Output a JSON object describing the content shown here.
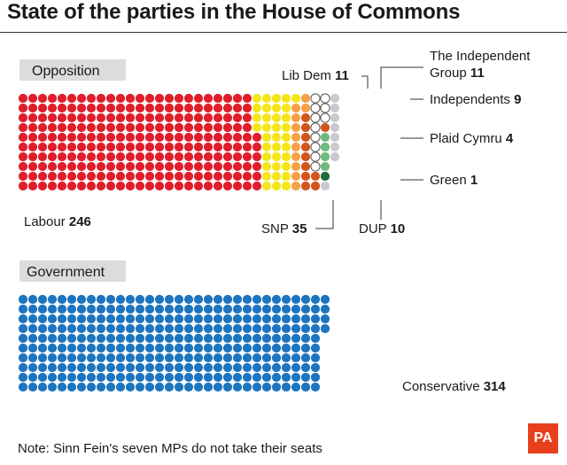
{
  "header": {
    "title": "State of the parties in the House of Commons"
  },
  "footer": {
    "note": "Note: Sinn Fein's seven MPs do not take their seats",
    "logo": "PA"
  },
  "chart_data": {
    "type": "waffle",
    "title": "State of the parties in the House of Commons",
    "groups": [
      {
        "name": "Opposition",
        "parties": [
          {
            "name": "Labour",
            "seats": 246,
            "color": "#e01e2b"
          },
          {
            "name": "SNP",
            "seats": 35,
            "color": "#f5e61c"
          },
          {
            "name": "Lib Dem",
            "seats": 11,
            "color": "#f4a14a"
          },
          {
            "name": "DUP",
            "seats": 10,
            "color": "#d2551c"
          },
          {
            "name": "The Independent Group",
            "label_lines": [
              "The Independent",
              "Group"
            ],
            "seats": 11,
            "color": "#ffffff"
          },
          {
            "name": "Plaid Cymru",
            "seats": 4,
            "color": "#6dbb7e"
          },
          {
            "name": "Green",
            "seats": 1,
            "color": "#1e6b35"
          },
          {
            "name": "Independents",
            "seats": 9,
            "color": "#c9c9d2"
          }
        ]
      },
      {
        "name": "Government",
        "parties": [
          {
            "name": "Conservative",
            "seats": 314,
            "color": "#1d75bf"
          }
        ]
      }
    ]
  }
}
